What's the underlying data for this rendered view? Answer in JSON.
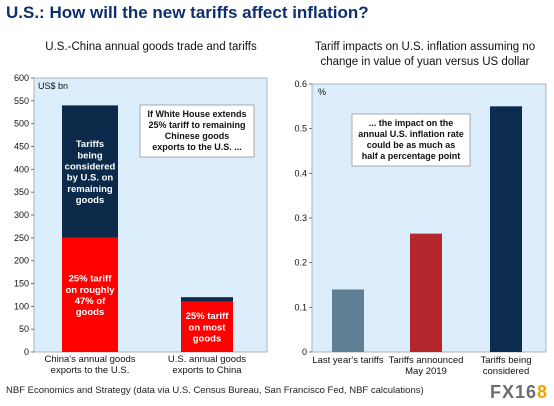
{
  "page": {
    "title": "U.S.: How will the new tariffs affect inflation?",
    "footnote": "NBF Economics and Strategy (data via U.S. Census Bureau, San Francisco Fed, NBF calculations)",
    "watermark_main": "FX16",
    "watermark_accent": "8"
  },
  "colors": {
    "title": "#0e2f6e",
    "plot_bg": "#dceefb",
    "navy": "#0b2a4a",
    "red": "#ff0000",
    "gray_blue": "#5f7f94",
    "dark_red": "#b3262b",
    "navy2": "#0c2c4d"
  },
  "chart_data": [
    {
      "type": "bar",
      "stacked": true,
      "title": "U.S.-China annual goods trade and tariffs",
      "ylabel": "US$ bn",
      "ylim": [
        0,
        600
      ],
      "yticks": [
        "0",
        "50",
        "100",
        "150",
        "200",
        "250",
        "300",
        "350",
        "400",
        "450",
        "500",
        "550",
        "600"
      ],
      "categories": [
        [
          "China's annual goods",
          "exports to the U.S."
        ],
        [
          "U.S. annual goods",
          "exports to China"
        ]
      ],
      "series": [
        {
          "values": [
            250,
            110
          ],
          "color": "#ff0000",
          "labels": [
            [
              "25% tariff",
              "on roughly",
              "47% of",
              "goods"
            ],
            [
              "25% tariff",
              "on most",
              "goods"
            ]
          ]
        },
        {
          "values": [
            290,
            10
          ],
          "color": "#0b2a4a",
          "labels": [
            [
              "Tariffs",
              "being",
              "considered",
              "by U.S. on",
              "remaining",
              "goods"
            ],
            []
          ]
        }
      ],
      "annotation": [
        "If White House extends",
        "25% tariff to remaining",
        "Chinese goods",
        "exports to the U.S. ..."
      ],
      "grid": false
    },
    {
      "type": "bar",
      "title": [
        "Tariff impacts on U.S. inflation assuming no",
        "change in value of yuan versus US dollar"
      ],
      "ylabel": "%",
      "ylim": [
        0,
        0.6
      ],
      "yticks": [
        "0",
        "0.1",
        "0.2",
        "0.3",
        "0.4",
        "0.5",
        "0.6"
      ],
      "categories": [
        [
          "Last year's tariffs"
        ],
        [
          "Tariffs announced",
          "May 2019"
        ],
        [
          "Tariffs being",
          "considered"
        ]
      ],
      "values": [
        0.14,
        0.265,
        0.55
      ],
      "colors": [
        "#5f7f94",
        "#b3262b",
        "#0c2c4d"
      ],
      "annotation": [
        "... the impact on the",
        "annual U.S. inflation rate",
        "could be as much as",
        "half a percentage point"
      ],
      "grid": false
    }
  ]
}
